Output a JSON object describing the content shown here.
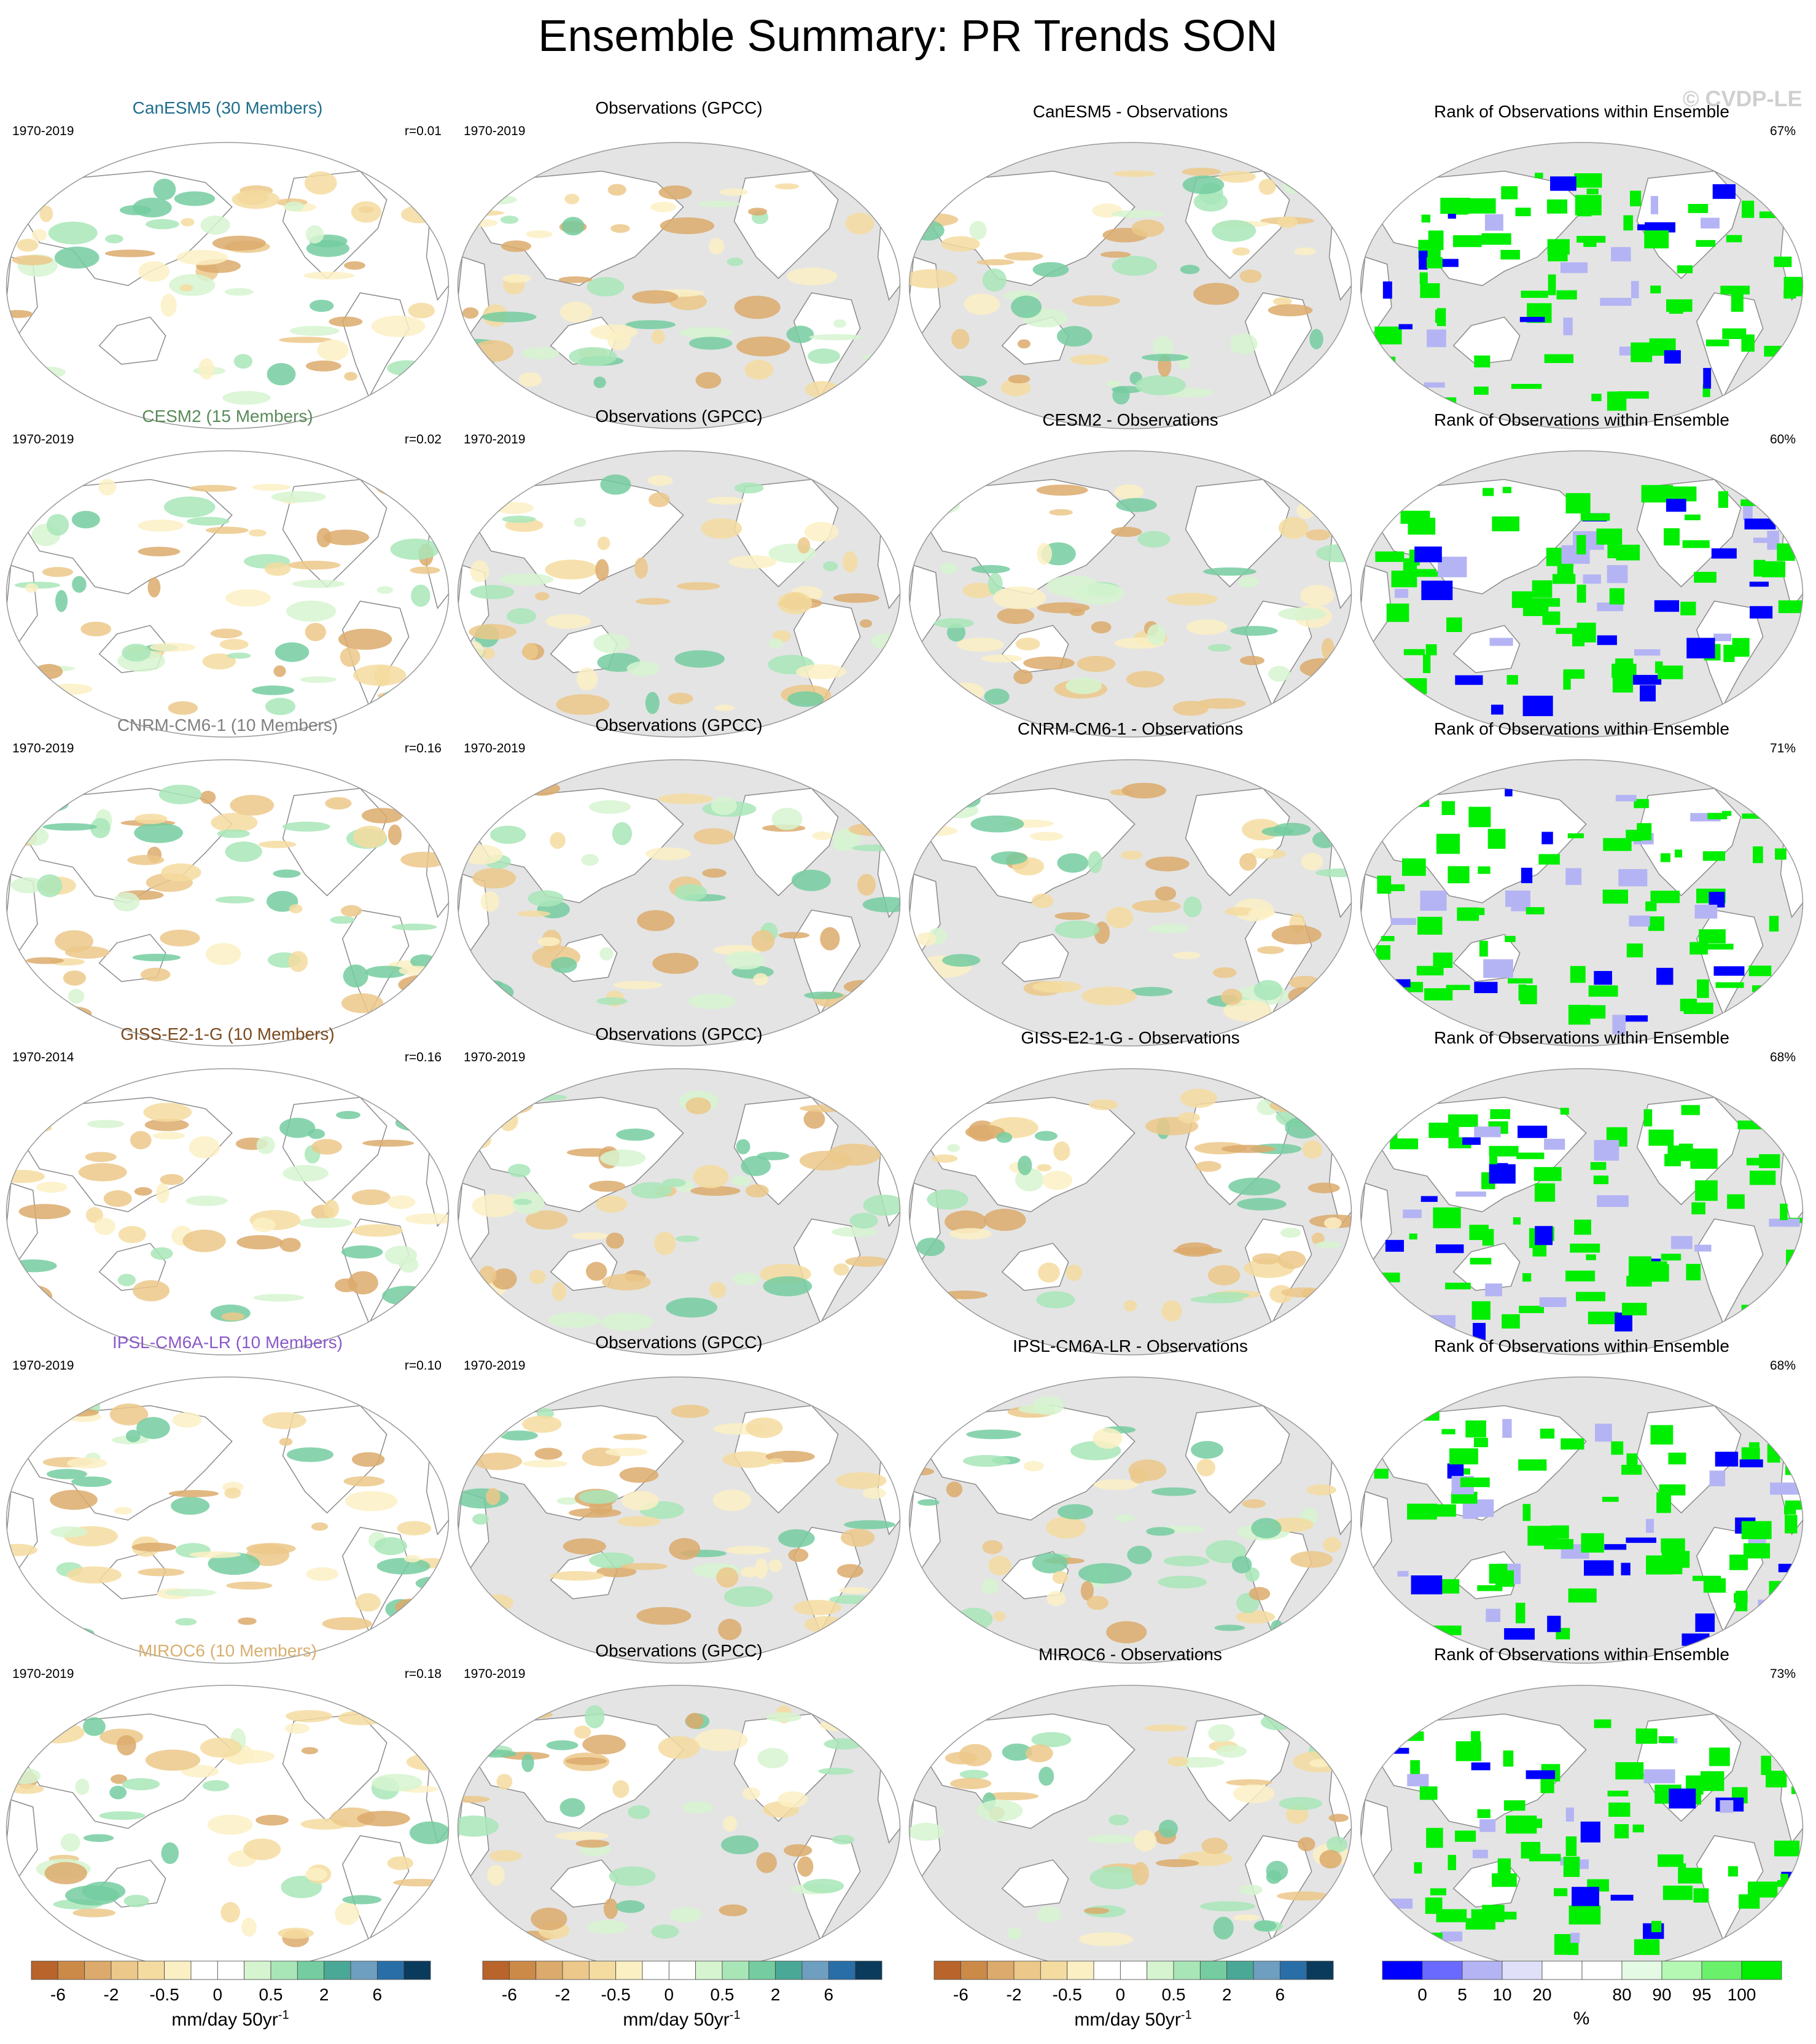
{
  "title": "Ensemble Summary: PR Trends SON",
  "watermark": "© CVDP-LE",
  "rank_title": "Rank of Observations within Ensemble",
  "obs_title": "Observations (GPCC)",
  "obs_period": "1970-2019",
  "rows": [
    {
      "model_title": "CanESM5 (30 Members)",
      "model_color": "#1f6e8c",
      "period": "1970-2019",
      "r": "r=0.01",
      "diff_title": "CanESM5 - Observations",
      "rank_pct": "67%"
    },
    {
      "model_title": "CESM2 (15 Members)",
      "model_color": "#5a8a5a",
      "period": "1970-2019",
      "r": "r=0.02",
      "diff_title": "CESM2 - Observations",
      "rank_pct": "60%"
    },
    {
      "model_title": "CNRM-CM6-1 (10 Members)",
      "model_color": "#808080",
      "period": "1970-2019",
      "r": "r=0.16",
      "diff_title": "CNRM-CM6-1 - Observations",
      "rank_pct": "71%"
    },
    {
      "model_title": "GISS-E2-1-G (10 Members)",
      "model_color": "#7a4a1e",
      "period": "1970-2014",
      "r": "r=0.16",
      "diff_title": "GISS-E2-1-G - Observations",
      "rank_pct": "68%"
    },
    {
      "model_title": "IPSL-CM6A-LR (10 Members)",
      "model_color": "#8a5ac8",
      "period": "1970-2019",
      "r": "r=0.10",
      "diff_title": "IPSL-CM6A-LR - Observations",
      "rank_pct": "68%"
    },
    {
      "model_title": "MIROC6 (10 Members)",
      "model_color": "#d8b070",
      "period": "1970-2019",
      "r": "r=0.18",
      "diff_title": "MIROC6 - Observations",
      "rank_pct": "73%"
    }
  ],
  "trend_colorbar": {
    "colors": [
      "#b8642a",
      "#cc8a48",
      "#dcaa6c",
      "#ecc88a",
      "#f4dca0",
      "#fbf0c4",
      "#ffffff",
      "#ffffff",
      "#d6f4d0",
      "#a8e6b8",
      "#74cca0",
      "#4aa896",
      "#6e9ec0",
      "#2a6ea8",
      "#0a3a5c"
    ],
    "labels": [
      "-6",
      "-2",
      "-0.5",
      "0",
      "0.5",
      "2",
      "6"
    ],
    "units": "mm/day 50yr",
    "units_sup": "-1"
  },
  "rank_colorbar": {
    "colors": [
      "#0000ff",
      "#6a6aff",
      "#b4b4f4",
      "#e0e0f8",
      "#ffffff",
      "#ffffff",
      "#e4fae4",
      "#b4f8b4",
      "#6af06a",
      "#00ee00"
    ],
    "labels": [
      "0",
      "5",
      "10",
      "20",
      "80",
      "90",
      "95",
      "100"
    ],
    "units": "%"
  },
  "colors": {
    "ocean_model": "#ffffff",
    "ocean_obs": "#e4e4e4",
    "land": "#ffffff",
    "coast": "#8a8a8a"
  }
}
